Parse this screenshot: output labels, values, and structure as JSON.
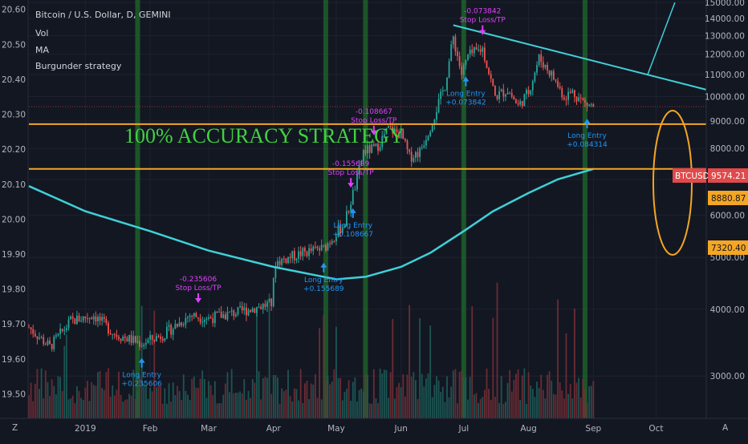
{
  "header": {
    "title": "Bitcoin / U.S. Dollar, D, GEMINI",
    "indicators": [
      "Vol",
      "MA",
      "Burgunder strategy"
    ]
  },
  "overlay_text": "100% ACCURACY STRATEGY",
  "colors": {
    "background": "#131722",
    "grid": "#1e2230",
    "axis_text": "#b2b5be",
    "up": "#26a69a",
    "down": "#ef5350",
    "vol_up": "#1f5f5a",
    "vol_down": "#7a2f36",
    "ma": "#3fd0d8",
    "trendline": "#3fd0d8",
    "support": "#f5a623",
    "overlay_text": "#3fd23f",
    "stop_loss": "#e040fb",
    "long_entry": "#2196f3",
    "signal_bar": "#1f6b2a",
    "current_price_badge": "#e04a4a"
  },
  "price_labels": {
    "btcusd_label": "BTCUSD",
    "btcusd_value": "9574.21",
    "support_upper": "8880.87",
    "support_lower": "7320.40"
  },
  "trades": [
    {
      "date": "2019-01-28",
      "type": "entry",
      "label": "Long Entry",
      "value": "+0.235606"
    },
    {
      "date": "2019-02-24",
      "type": "stop",
      "label": "Stop Loss/TP",
      "value": "-0.235606"
    },
    {
      "date": "2019-04-25",
      "type": "entry",
      "label": "Long Entry",
      "value": "+0.155689"
    },
    {
      "date": "2019-05-08",
      "type": "stop",
      "label": "Stop Loss/TP",
      "value": "-0.155689"
    },
    {
      "date": "2019-05-09",
      "type": "entry",
      "label": "Long Entry",
      "value": "+0.108667"
    },
    {
      "date": "2019-05-19",
      "type": "stop",
      "label": "Stop Loss/TP",
      "value": "-0.108667"
    },
    {
      "date": "2019-07-02",
      "type": "entry",
      "label": "Long Entry",
      "value": "+0.073842"
    },
    {
      "date": "2019-07-10",
      "type": "stop",
      "label": "Stop Loss/TP",
      "value": "-0.073842"
    },
    {
      "date": "2019-08-29",
      "type": "entry",
      "label": "Long Entry",
      "value": "+0.084314"
    }
  ],
  "signal_dates": [
    "2019-01-26",
    "2019-04-26",
    "2019-05-15",
    "2019-07-01",
    "2019-08-28"
  ],
  "time_axis": {
    "bottom_left": "Z",
    "bottom_right": "A",
    "ticks": [
      {
        "date": "2019-01-01",
        "label": "2019"
      },
      {
        "date": "2019-02-01",
        "label": "Feb"
      },
      {
        "date": "2019-03-01",
        "label": "Mar"
      },
      {
        "date": "2019-04-01",
        "label": "Apr"
      },
      {
        "date": "2019-05-01",
        "label": "May"
      },
      {
        "date": "2019-06-01",
        "label": "Jun"
      },
      {
        "date": "2019-07-01",
        "label": "Jul"
      },
      {
        "date": "2019-08-01",
        "label": "Aug"
      },
      {
        "date": "2019-09-01",
        "label": "Sep"
      },
      {
        "date": "2019-10-01",
        "label": "Oct"
      }
    ]
  },
  "chart_data": {
    "type": "line",
    "title": "Bitcoin / U.S. Dollar, D, GEMINI",
    "x_range": [
      "2018-12-05",
      "2019-10-25"
    ],
    "y_range_right": [
      2500,
      15000
    ],
    "right_axis_scale": "log",
    "right_ticks": [
      "3000.00",
      "4000.00",
      "5000.00",
      "6000.00",
      "7000.00",
      "8000.00",
      "9000.00",
      "10000.00",
      "11000.00",
      "12000.00",
      "13000.00",
      "14000.00",
      "15000.00"
    ],
    "left_range": [
      19.43,
      20.62
    ],
    "left_ticks": [
      "19.50",
      "19.60",
      "19.70",
      "19.80",
      "19.90",
      "20.00",
      "20.10",
      "20.20",
      "20.30",
      "20.40",
      "20.50",
      "20.60"
    ],
    "price_path": [
      [
        "2018-12-05",
        3700
      ],
      [
        "2018-12-15",
        3400
      ],
      [
        "2018-12-25",
        3800
      ],
      [
        "2019-01-05",
        3900
      ],
      [
        "2019-01-15",
        3600
      ],
      [
        "2019-01-28",
        3450
      ],
      [
        "2019-02-08",
        3600
      ],
      [
        "2019-02-20",
        3900
      ],
      [
        "2019-03-01",
        3850
      ],
      [
        "2019-03-15",
        3950
      ],
      [
        "2019-03-31",
        4100
      ],
      [
        "2019-04-02",
        4900
      ],
      [
        "2019-04-15",
        5100
      ],
      [
        "2019-04-25",
        5200
      ],
      [
        "2019-05-05",
        5800
      ],
      [
        "2019-05-11",
        7000
      ],
      [
        "2019-05-14",
        7900
      ],
      [
        "2019-05-20",
        8000
      ],
      [
        "2019-05-26",
        8700
      ],
      [
        "2019-06-01",
        8500
      ],
      [
        "2019-06-05",
        7700
      ],
      [
        "2019-06-10",
        7900
      ],
      [
        "2019-06-15",
        8800
      ],
      [
        "2019-06-22",
        10500
      ],
      [
        "2019-06-26",
        12900
      ],
      [
        "2019-06-30",
        11000
      ],
      [
        "2019-07-03",
        11900
      ],
      [
        "2019-07-10",
        12300
      ],
      [
        "2019-07-16",
        10000
      ],
      [
        "2019-07-22",
        10300
      ],
      [
        "2019-07-27",
        9600
      ],
      [
        "2019-08-01",
        10200
      ],
      [
        "2019-08-06",
        11800
      ],
      [
        "2019-08-12",
        11000
      ],
      [
        "2019-08-18",
        10000
      ],
      [
        "2019-08-22",
        10200
      ],
      [
        "2019-08-28",
        9700
      ],
      [
        "2019-09-01",
        9574
      ]
    ],
    "ma_path": [
      [
        "2018-12-05",
        6800
      ],
      [
        "2019-01-01",
        6100
      ],
      [
        "2019-02-01",
        5600
      ],
      [
        "2019-03-01",
        5150
      ],
      [
        "2019-04-01",
        4800
      ],
      [
        "2019-05-01",
        4550
      ],
      [
        "2019-05-15",
        4600
      ],
      [
        "2019-06-01",
        4800
      ],
      [
        "2019-06-15",
        5100
      ],
      [
        "2019-07-01",
        5600
      ],
      [
        "2019-07-15",
        6100
      ],
      [
        "2019-08-01",
        6600
      ],
      [
        "2019-08-15",
        7000
      ],
      [
        "2019-09-01",
        7320
      ]
    ],
    "trendline": [
      [
        "2019-06-26",
        13600
      ],
      [
        "2019-10-25",
        10300
      ]
    ],
    "projection_line": [
      [
        "2019-09-27",
        11000
      ],
      [
        "2019-10-10",
        15000
      ]
    ],
    "support_levels": [
      8880.87,
      7320.4
    ],
    "current_price": 9574.21
  }
}
